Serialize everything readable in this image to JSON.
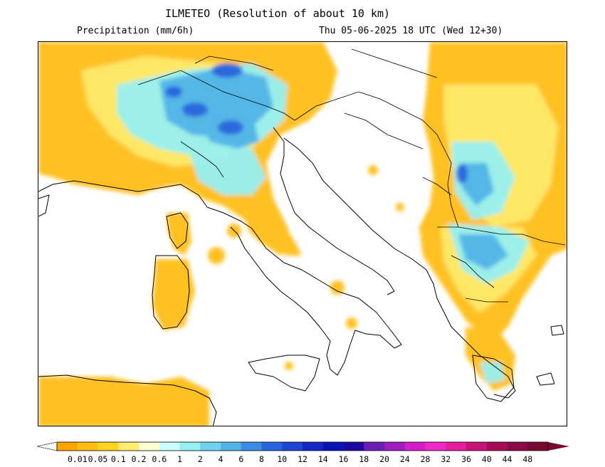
{
  "header": {
    "title": "ILMETEO (Resolution of about 10 km)",
    "variable": "Precipitation (mm/6h)",
    "valid_time": "Thu 05-06-2025 18 UTC (Wed 12+30)"
  },
  "legend": {
    "tick_labels": [
      "0.01",
      "0.05",
      "0.1",
      "0.2",
      "0.6",
      "1",
      "2",
      "4",
      "6",
      "8",
      "10",
      "12",
      "14",
      "16",
      "18",
      "20",
      "24",
      "28",
      "32",
      "36",
      "40",
      "44",
      "48"
    ],
    "colors": [
      "#ffa500",
      "#ffbe14",
      "#ffd21e",
      "#ffeb6e",
      "#ffffd2",
      "#c8ffff",
      "#96f0f0",
      "#6ed2f0",
      "#50b4e6",
      "#3c8ce6",
      "#2864dc",
      "#1e46d2",
      "#1428c8",
      "#0a14b4",
      "#1e0aa0",
      "#6e1eb4",
      "#a01ebe",
      "#d21ec8",
      "#f028c8",
      "#e61ea0",
      "#c81478",
      "#aa0a5a",
      "#8c0a46",
      "#780a32"
    ],
    "under_color": "#ffffff",
    "over_color": "#780a32"
  },
  "colors": {
    "land_outline": "#000000",
    "background": "#ffffff",
    "sea": "#ffffff"
  }
}
